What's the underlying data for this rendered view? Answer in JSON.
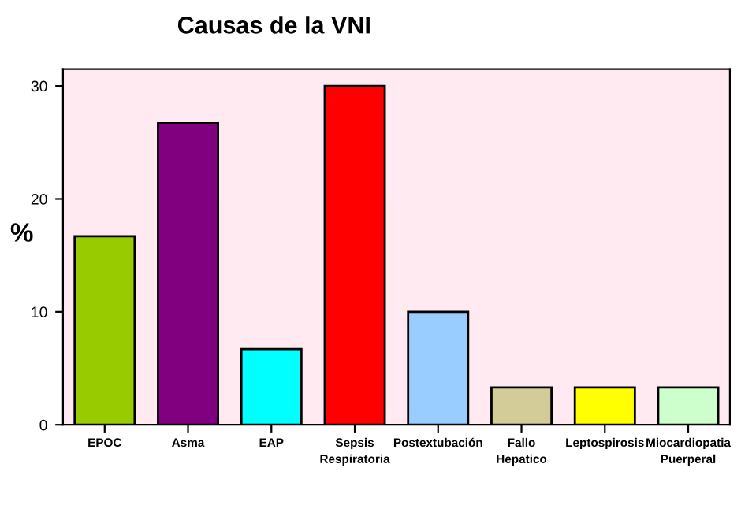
{
  "chart_data": {
    "type": "bar",
    "title": "Causas de la VNI",
    "ylabel": "%",
    "categories": [
      "EPOC",
      "Asma",
      "EAP",
      "Sepsis Respiratoria",
      "Postextubación",
      "Fallo Hepatico",
      "Leptospirosis",
      "Miocardiopatia Puerperal"
    ],
    "values": [
      16.7,
      26.7,
      6.7,
      30,
      10,
      3.3,
      3.3,
      3.3
    ],
    "colors": [
      "#99cc00",
      "#800080",
      "#00ffff",
      "#ff0000",
      "#99ccff",
      "#d3cc99",
      "#ffff00",
      "#ccffcc"
    ],
    "ylim": [
      0,
      31.5
    ],
    "yticks": [
      0,
      10,
      20,
      30
    ],
    "grid": false,
    "legend": false
  }
}
